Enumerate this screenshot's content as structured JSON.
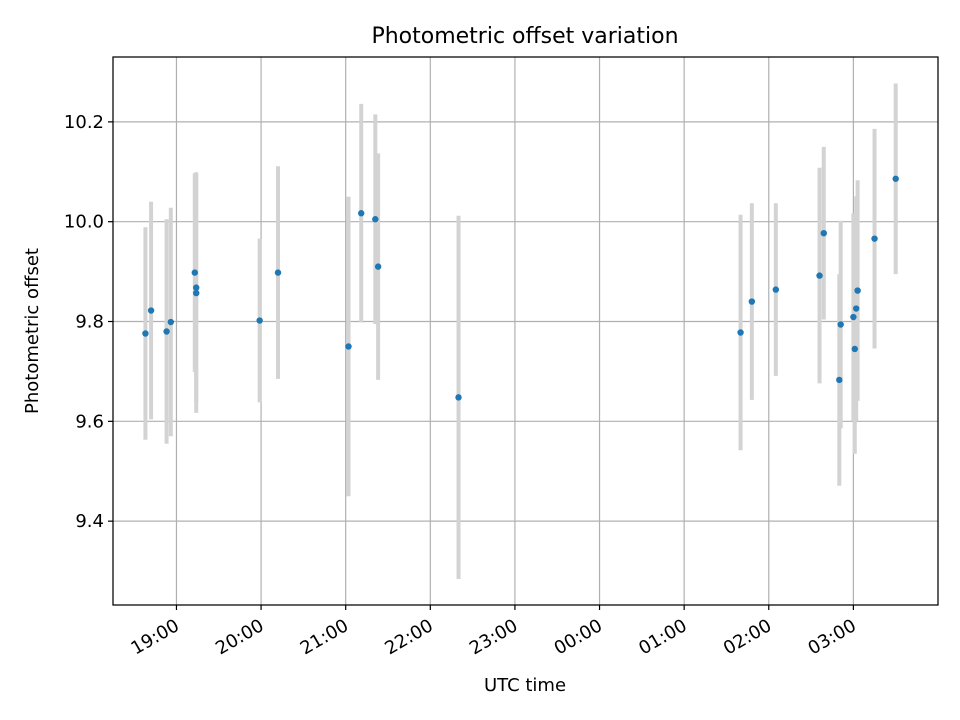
{
  "chart_data": {
    "type": "scatter",
    "title": "Photometric offset variation",
    "xlabel": "UTC time",
    "ylabel": "Photometric offset",
    "grid": true,
    "x_axis": {
      "kind": "time",
      "start": "18:15",
      "end": "04:00",
      "ticks": [
        "19:00",
        "20:00",
        "21:00",
        "22:00",
        "23:00",
        "00:00",
        "01:00",
        "02:00",
        "03:00"
      ]
    },
    "y_axis": {
      "ylim": [
        9.232,
        10.33
      ],
      "ticks": [
        9.4,
        9.6,
        9.8,
        10.0,
        10.2
      ]
    },
    "colors": {
      "points": "#1f77b4",
      "errorbars": "#d3d3d3",
      "grid": "#b0b0b0"
    },
    "points": [
      {
        "t": "18:38",
        "y": 9.776,
        "yerr": 0.213
      },
      {
        "t": "18:42",
        "y": 9.822,
        "yerr": 0.218
      },
      {
        "t": "18:53",
        "y": 9.78,
        "yerr": 0.225
      },
      {
        "t": "18:56",
        "y": 9.799,
        "yerr": 0.229
      },
      {
        "t": "19:13",
        "y": 9.898,
        "yerr": 0.199
      },
      {
        "t": "19:14",
        "y": 9.857,
        "yerr": 0.24
      },
      {
        "t": "19:14",
        "y": 9.868,
        "yerr": 0.231
      },
      {
        "t": "19:59",
        "y": 9.802,
        "yerr": 0.164
      },
      {
        "t": "20:12",
        "y": 9.898,
        "yerr": 0.213
      },
      {
        "t": "21:02",
        "y": 9.75,
        "yerr": 0.3
      },
      {
        "t": "21:11",
        "y": 10.017,
        "yerr": 0.219
      },
      {
        "t": "21:21",
        "y": 10.005,
        "yerr": 0.21
      },
      {
        "t": "21:23",
        "y": 9.91,
        "yerr": 0.227
      },
      {
        "t": "22:20",
        "y": 9.648,
        "yerr": 0.364
      },
      {
        "t": "01:40",
        "y": 9.778,
        "yerr": 0.236
      },
      {
        "t": "01:48",
        "y": 9.84,
        "yerr": 0.197
      },
      {
        "t": "02:05",
        "y": 9.864,
        "yerr": 0.173
      },
      {
        "t": "02:36",
        "y": 9.892,
        "yerr": 0.216
      },
      {
        "t": "02:39",
        "y": 9.977,
        "yerr": 0.173
      },
      {
        "t": "02:50",
        "y": 9.683,
        "yerr": 0.212
      },
      {
        "t": "02:51",
        "y": 9.794,
        "yerr": 0.208
      },
      {
        "t": "03:00",
        "y": 9.809,
        "yerr": 0.208
      },
      {
        "t": "03:01",
        "y": 9.745,
        "yerr": 0.21
      },
      {
        "t": "03:02",
        "y": 9.826,
        "yerr": 0.225
      },
      {
        "t": "03:03",
        "y": 9.862,
        "yerr": 0.221
      },
      {
        "t": "03:15",
        "y": 9.966,
        "yerr": 0.22
      },
      {
        "t": "03:30",
        "y": 10.086,
        "yerr": 0.191
      }
    ]
  }
}
